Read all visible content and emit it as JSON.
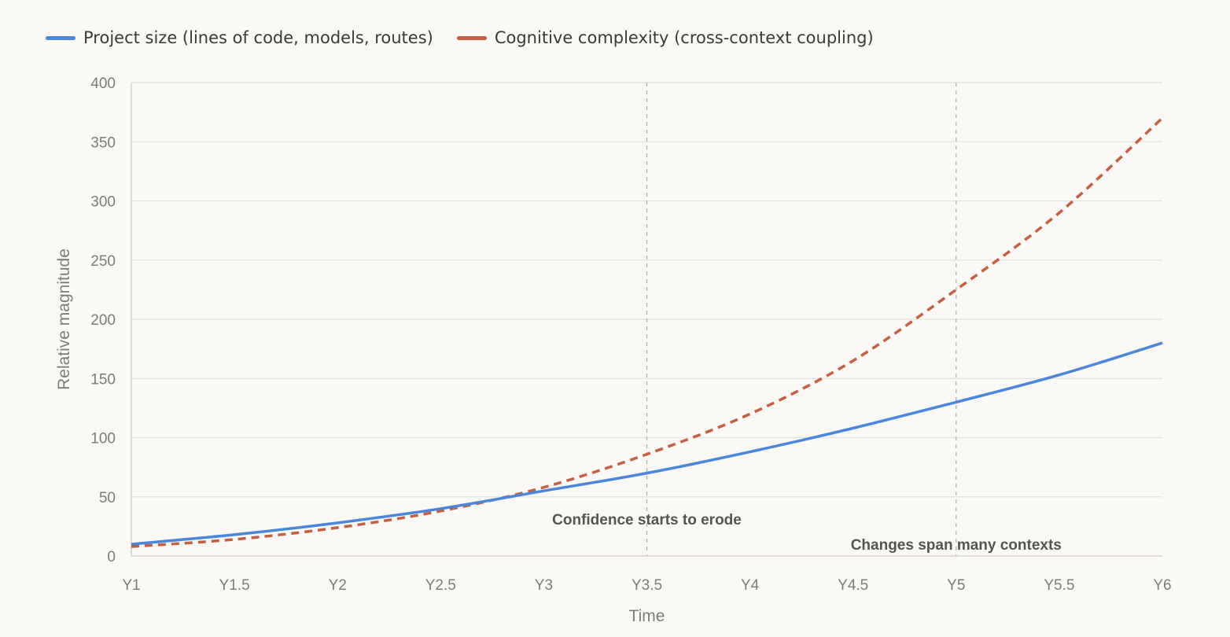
{
  "chart_data": {
    "type": "line",
    "title": "",
    "xlabel": "Time",
    "ylabel": "Relative magnitude",
    "categories": [
      "Y1",
      "Y1.5",
      "Y2",
      "Y2.5",
      "Y3",
      "Y3.5",
      "Y4",
      "Y4.5",
      "Y5",
      "Y5.5",
      "Y6"
    ],
    "ylim": [
      0,
      400
    ],
    "yticks": [
      0,
      50,
      100,
      150,
      200,
      250,
      300,
      350,
      400
    ],
    "grid": "horizontal",
    "legend_position": "top-left",
    "series": [
      {
        "name": "Project size (lines of code, models, routes)",
        "style": "solid",
        "color": "#4a86d9",
        "values": [
          10,
          18,
          28,
          40,
          55,
          70,
          88,
          108,
          130,
          153,
          180
        ]
      },
      {
        "name": "Cognitive complexity (cross-context coupling)",
        "style": "dashed",
        "color": "#c65f3f",
        "values": [
          8,
          14,
          24,
          38,
          58,
          86,
          120,
          165,
          225,
          290,
          370
        ]
      }
    ],
    "annotations": [
      {
        "x": "Y3.5",
        "label": "Confidence starts to erode"
      },
      {
        "x": "Y5",
        "label": "Changes span many contexts"
      }
    ]
  }
}
